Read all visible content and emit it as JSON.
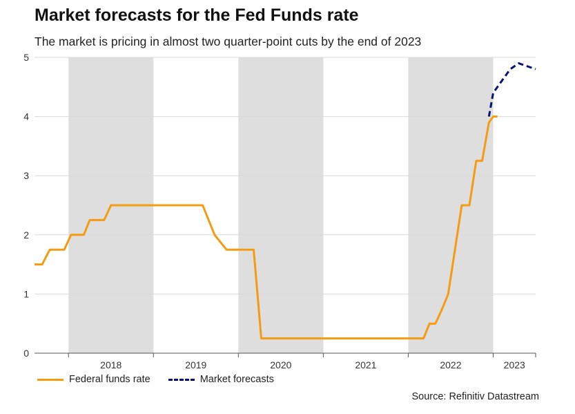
{
  "chart_data": {
    "type": "line",
    "title": "Market forecasts for the Fed Funds rate",
    "subtitle": "The market is pricing in almost two quarter-point cuts by the end of 2023",
    "source": "Source: Refinitiv Datastream",
    "xlim": [
      2017.6,
      2023.5
    ],
    "ylim": [
      0,
      5
    ],
    "yticks": [
      "0",
      "1",
      "2",
      "3",
      "4",
      "5"
    ],
    "grid": true,
    "legend_position": "bottom-left",
    "year_labels": [
      {
        "year": 2018,
        "label": "2018"
      },
      {
        "year": 2019,
        "label": "2019"
      },
      {
        "year": 2020,
        "label": "2020"
      },
      {
        "year": 2021,
        "label": "2021"
      },
      {
        "year": 2022,
        "label": "2022"
      },
      {
        "year": 2023,
        "label": "2023"
      }
    ],
    "shaded_years": [
      2018,
      2020,
      2022
    ],
    "series": [
      {
        "name": "Federal funds rate",
        "color": "#F39C12",
        "style": "solid",
        "x": [
          2017.6,
          2017.69,
          2017.78,
          2017.95,
          2018.03,
          2018.18,
          2018.25,
          2018.42,
          2018.5,
          2018.58,
          2018.95,
          2019.05,
          2019.2,
          2019.58,
          2019.72,
          2019.86,
          2019.94,
          2020.18,
          2020.27,
          2021.5,
          2022.0,
          2022.18,
          2022.25,
          2022.32,
          2022.4,
          2022.47,
          2022.63,
          2022.72,
          2022.8,
          2022.87,
          2022.95,
          2023.0,
          2023.05
        ],
        "y": [
          1.5,
          1.5,
          1.75,
          1.75,
          2.0,
          2.0,
          2.25,
          2.25,
          2.5,
          2.5,
          2.5,
          2.5,
          2.5,
          2.5,
          2.0,
          1.75,
          1.75,
          1.75,
          0.25,
          0.25,
          0.25,
          0.25,
          0.5,
          0.5,
          0.75,
          1.0,
          2.5,
          2.5,
          3.25,
          3.25,
          3.9,
          4.0,
          4.0
        ]
      },
      {
        "name": "Market forecasts",
        "color": "#0A1172",
        "style": "dashed",
        "x": [
          2022.95,
          2023.0,
          2023.1,
          2023.2,
          2023.3,
          2023.4,
          2023.5
        ],
        "y": [
          4.0,
          4.4,
          4.6,
          4.8,
          4.9,
          4.85,
          4.8
        ]
      }
    ]
  }
}
